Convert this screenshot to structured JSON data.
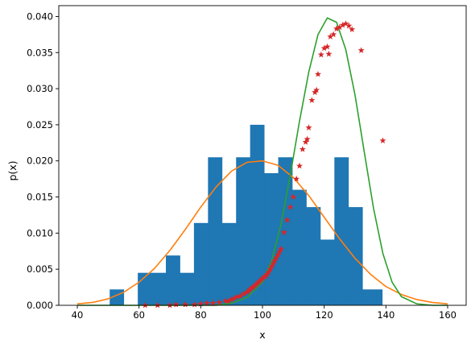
{
  "chart_data": {
    "type": "histogram+line+scatter",
    "title": "",
    "xlabel": "x",
    "ylabel": "p(x)",
    "xlim": [
      34,
      166
    ],
    "ylim": [
      0,
      0.0415
    ],
    "xticks": [
      "40",
      "60",
      "80",
      "100",
      "120",
      "140",
      "160"
    ],
    "yticks": [
      "0.000",
      "0.005",
      "0.010",
      "0.015",
      "0.020",
      "0.025",
      "0.030",
      "0.035",
      "0.040"
    ],
    "grid": false,
    "legend": "none",
    "colors": {
      "hist": "#1f77b4",
      "orange": "#ff7f0e",
      "green": "#2ca02c",
      "red": "#d62728"
    },
    "histogram": {
      "edges": [
        50.5,
        55.05,
        59.6,
        64.15,
        68.7,
        73.25,
        77.8,
        82.35,
        86.9,
        91.45,
        96.0,
        100.55,
        105.1,
        109.65,
        114.2,
        118.75,
        123.3,
        127.85,
        132.4,
        136.95,
        138.8
      ],
      "heights": [
        0.0022,
        0.0,
        0.0045,
        0.0045,
        0.0069,
        0.0045,
        0.0114,
        0.0205,
        0.0114,
        0.0205,
        0.025,
        0.0183,
        0.0205,
        0.016,
        0.0136,
        0.0091,
        0.0205,
        0.0136,
        0.0022,
        0.0022
      ]
    },
    "series": [
      {
        "curve": "orange-normal",
        "x": [
          40,
          45,
          50,
          55,
          60,
          65,
          70,
          75,
          80,
          85,
          90,
          95,
          100,
          105,
          110,
          115,
          120,
          125,
          130,
          135,
          140,
          145,
          150,
          155,
          160
        ],
        "y": [
          0.0002,
          0.0004,
          0.0009,
          0.0018,
          0.0032,
          0.0051,
          0.0076,
          0.0105,
          0.0136,
          0.0164,
          0.0186,
          0.0198,
          0.02,
          0.0194,
          0.0177,
          0.0152,
          0.0122,
          0.0092,
          0.0065,
          0.0043,
          0.0026,
          0.0015,
          0.0008,
          0.0004,
          0.0002
        ]
      },
      {
        "curve": "green-skewed",
        "x": [
          40,
          85,
          90,
          95,
          100,
          103,
          106,
          109,
          112,
          115,
          118,
          121,
          124,
          127,
          130,
          133,
          136,
          139,
          142,
          145,
          150,
          155,
          160
        ],
        "y": [
          0.0,
          0.0,
          0.0003,
          0.0011,
          0.0032,
          0.0062,
          0.0112,
          0.018,
          0.0255,
          0.0323,
          0.0375,
          0.0398,
          0.0392,
          0.0354,
          0.0291,
          0.0212,
          0.0134,
          0.0072,
          0.0032,
          0.0012,
          0.0002,
          0.0,
          0.0
        ]
      },
      {
        "curve": "red-stars",
        "x": [
          62,
          66,
          70,
          72,
          75,
          78,
          80,
          82,
          84,
          86,
          88,
          89,
          90,
          91,
          92,
          93,
          94,
          95,
          95.5,
          96,
          96.5,
          97,
          97.5,
          98,
          98.5,
          99,
          99.5,
          100,
          100.5,
          101,
          101.5,
          102,
          102.5,
          103,
          103.5,
          104,
          104.5,
          105,
          105.5,
          106,
          107,
          108,
          109,
          110,
          111,
          112,
          113,
          114,
          114.5,
          115,
          116,
          117,
          117.5,
          118,
          119,
          120,
          121,
          121.5,
          122,
          123,
          124,
          125,
          126,
          127,
          128,
          129,
          132,
          139
        ],
        "y": [
          0.0,
          0.0,
          0.0,
          0.0001,
          0.0001,
          0.0001,
          0.0002,
          0.0003,
          0.0003,
          0.0004,
          0.0006,
          0.0006,
          0.0008,
          0.001,
          0.0012,
          0.0013,
          0.0016,
          0.0018,
          0.002,
          0.0022,
          0.0024,
          0.0025,
          0.0027,
          0.0029,
          0.0031,
          0.0033,
          0.0035,
          0.0037,
          0.0039,
          0.004,
          0.0043,
          0.0046,
          0.005,
          0.0054,
          0.0058,
          0.0062,
          0.0066,
          0.007,
          0.0074,
          0.0078,
          0.0101,
          0.0118,
          0.0136,
          0.015,
          0.0175,
          0.0193,
          0.0216,
          0.0226,
          0.023,
          0.0246,
          0.0284,
          0.0295,
          0.0298,
          0.032,
          0.0347,
          0.0356,
          0.0358,
          0.0348,
          0.0372,
          0.0375,
          0.0383,
          0.0385,
          0.0388,
          0.039,
          0.0387,
          0.0382,
          0.0353,
          0.0228
        ]
      }
    ]
  }
}
